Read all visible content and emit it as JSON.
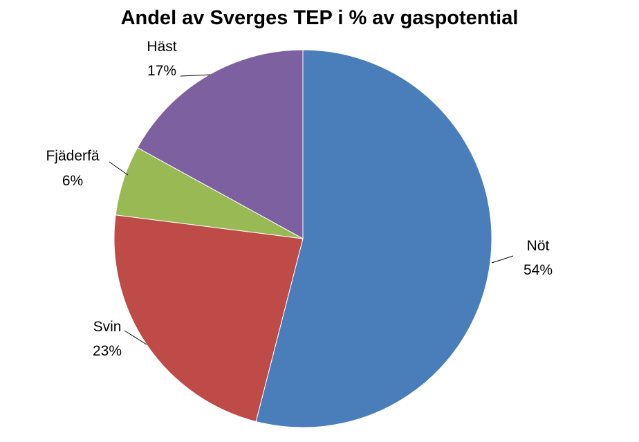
{
  "chart_data": {
    "type": "pie",
    "title": "Andel av Sverges TEP i % av gaspotential",
    "slices": [
      {
        "label": "Nöt",
        "value": 54,
        "value_label": "54%",
        "color": "#4a7ebb"
      },
      {
        "label": "Svin",
        "value": 23,
        "value_label": "23%",
        "color": "#be4b48"
      },
      {
        "label": "Fjäderfä",
        "value": 6,
        "value_label": "6%",
        "color": "#98b954"
      },
      {
        "label": "Häst",
        "value": 17,
        "value_label": "17%",
        "color": "#7d60a0"
      }
    ]
  }
}
